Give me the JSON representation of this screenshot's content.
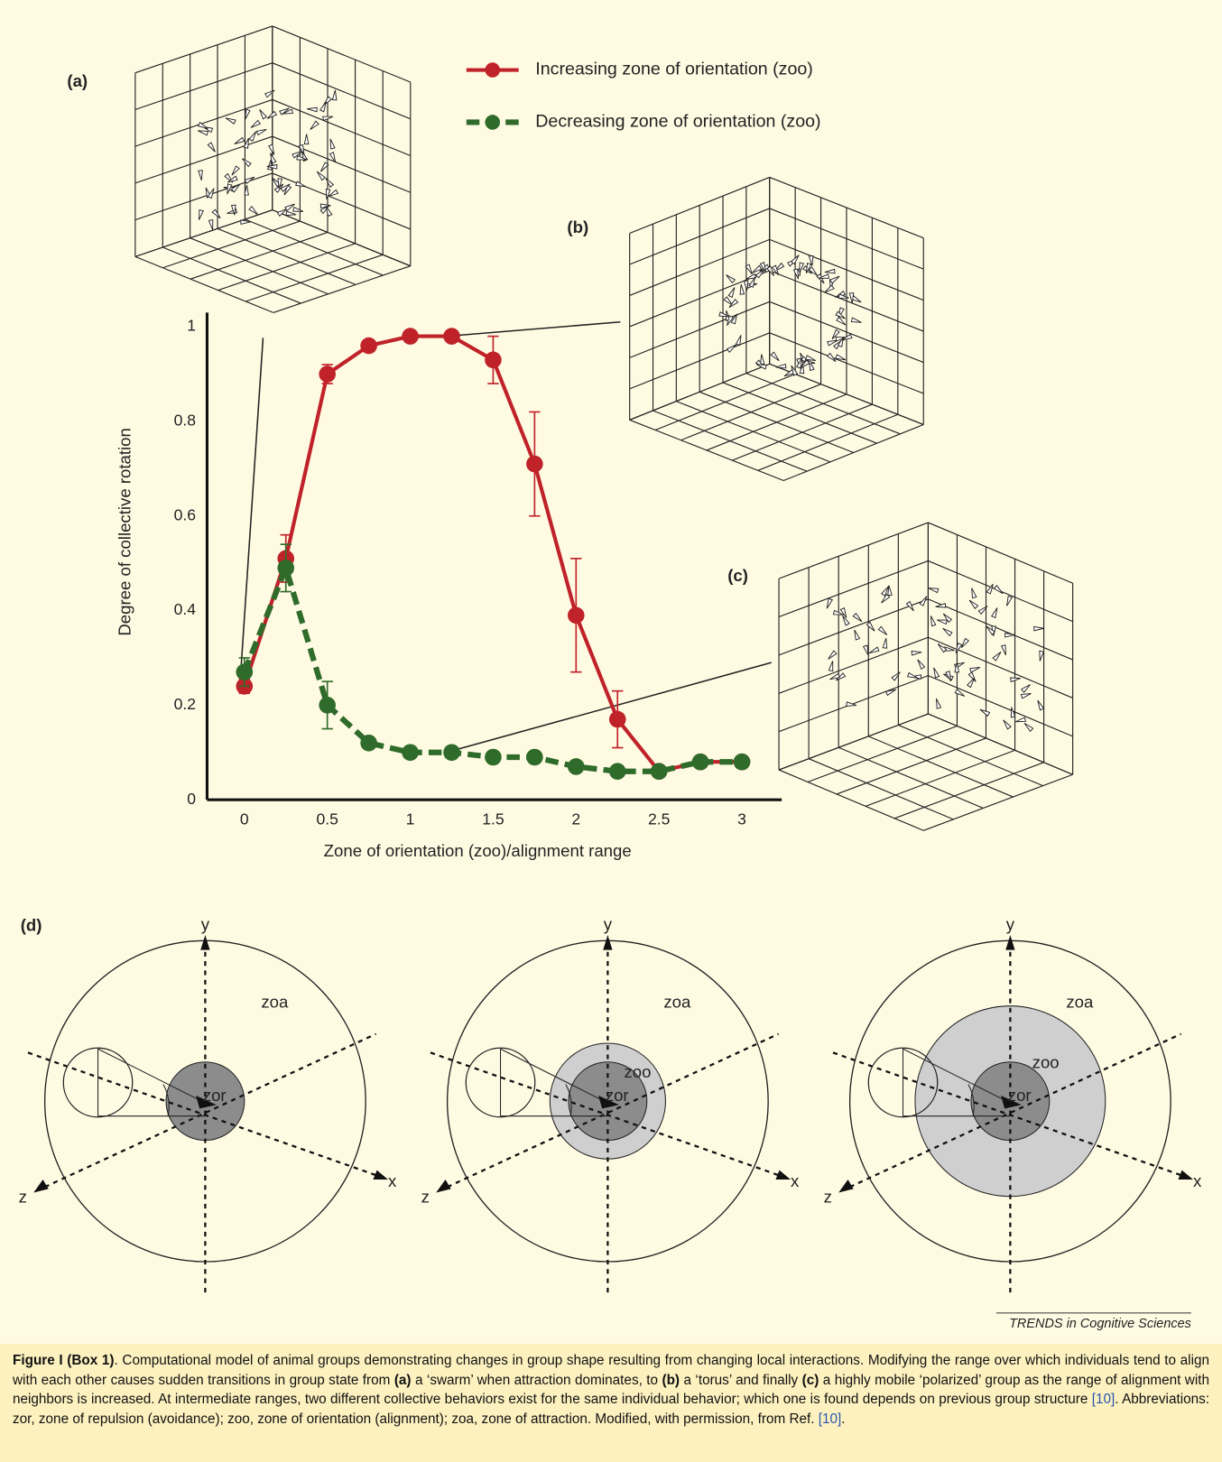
{
  "chart_data": {
    "type": "line",
    "x": [
      0,
      0.25,
      0.5,
      0.75,
      1,
      1.25,
      1.5,
      1.75,
      2,
      2.25,
      2.5,
      2.75,
      3
    ],
    "series": [
      {
        "name": "Increasing zone of orientation (zoo)",
        "color": "#c0222a",
        "dashed": false,
        "values": [
          0.24,
          0.51,
          0.9,
          0.96,
          0.98,
          0.98,
          0.93,
          0.71,
          0.39,
          0.17,
          0.06,
          0.08,
          0.08
        ],
        "errors": [
          0.015,
          0.05,
          0.02,
          null,
          null,
          null,
          0.05,
          0.11,
          0.12,
          0.06,
          null,
          null,
          null
        ]
      },
      {
        "name": "Decreasing zone of orientation (zoo)",
        "color": "#2f6b2a",
        "dashed": true,
        "values": [
          0.27,
          0.49,
          0.2,
          0.12,
          0.1,
          0.1,
          0.09,
          0.09,
          0.07,
          0.06,
          0.06,
          0.08,
          0.08
        ],
        "errors": [
          0.03,
          0.05,
          0.05,
          null,
          null,
          null,
          null,
          null,
          null,
          null,
          null,
          null,
          null
        ]
      }
    ],
    "xlim": [
      -0.225,
      3.24
    ],
    "ylim": [
      0,
      1.03
    ],
    "xticks": [
      0,
      0.5,
      1,
      1.5,
      2,
      2.5,
      3
    ],
    "yticks": [
      0,
      0.2,
      0.4,
      0.6,
      0.8,
      1
    ],
    "xlabel": "Zone of orientation (zoo)/alignment range",
    "ylabel": "Degree of collective rotation"
  },
  "panel_labels": {
    "a": "(a)",
    "b": "(b)",
    "c": "(c)",
    "d": "(d)"
  },
  "diagrams": [
    {
      "zoa": "zoa",
      "zor": "zor",
      "x": "x",
      "y": "y",
      "z": "z"
    },
    {
      "zoa": "zoa",
      "zoo": "zoo",
      "zor": "zor",
      "x": "x",
      "y": "y",
      "z": "z"
    },
    {
      "zoa": "zoa",
      "zoo": "zoo",
      "zor": "zor",
      "x": "x",
      "y": "y",
      "z": "z"
    }
  ],
  "credit": "TRENDS in Cognitive Sciences",
  "caption": [
    {
      "text": "Figure I (Box 1)",
      "bold": true
    },
    {
      "text": ". Computational model of animal groups demonstrating changes in group shape resulting from changing local interactions. Modifying the range over which individuals tend to align with each other causes sudden transitions in group state from "
    },
    {
      "text": "(a)",
      "bold": true
    },
    {
      "text": " a ‘swarm’ when attraction dominates, to "
    },
    {
      "text": "(b)",
      "bold": true
    },
    {
      "text": " a ‘torus’ and finally "
    },
    {
      "text": "(c)",
      "bold": true
    },
    {
      "text": " a highly mobile ‘polarized’ group as the range of alignment with neighbors is increased. At intermediate ranges, two different collective behaviors exist for the same individual behavior; which one is found depends on previous group structure "
    },
    {
      "text": "[10]",
      "link": true
    },
    {
      "text": ". Abbreviations: zor, zone of repulsion (avoidance); zoo, zone of orientation (alignment); zoa, zone of attraction. Modified, with permission, from Ref. "
    },
    {
      "text": "[10]",
      "link": true
    },
    {
      "text": "."
    }
  ]
}
